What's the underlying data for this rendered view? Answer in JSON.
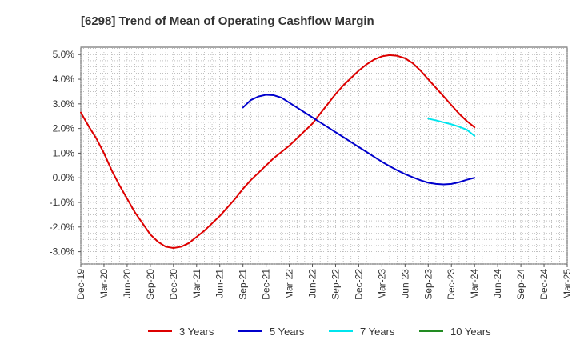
{
  "chart_data": {
    "type": "line",
    "title": "[6298]  Trend of Mean of Operating Cashflow Margin",
    "xlabel": "",
    "ylabel": "",
    "x_ticks": [
      "Dec-19",
      "Mar-20",
      "Jun-20",
      "Sep-20",
      "Dec-20",
      "Mar-21",
      "Jun-21",
      "Sep-21",
      "Dec-21",
      "Mar-22",
      "Jun-22",
      "Sep-22",
      "Dec-22",
      "Mar-23",
      "Jun-23",
      "Sep-23",
      "Dec-23",
      "Mar-24",
      "Jun-24",
      "Sep-24",
      "Dec-24",
      "Mar-25"
    ],
    "y_ticks": [
      "5.0%",
      "4.0%",
      "3.0%",
      "2.0%",
      "1.0%",
      "0.0%",
      "-1.0%",
      "-2.0%",
      "-3.0%"
    ],
    "y_tick_values": [
      5,
      4,
      3,
      2,
      1,
      0,
      -1,
      -2,
      -3
    ],
    "ylim": [
      -3.5,
      5.3
    ],
    "grid": true,
    "legend_position": "bottom",
    "series": [
      {
        "name": "3 Years",
        "color": "#dd0000",
        "points": [
          [
            "Dec-19",
            2.65
          ],
          [
            "Jan-20",
            2.1
          ],
          [
            "Feb-20",
            1.6
          ],
          [
            "Mar-20",
            1.0
          ],
          [
            "Apr-20",
            0.3
          ],
          [
            "May-20",
            -0.3
          ],
          [
            "Jun-20",
            -0.85
          ],
          [
            "Jul-20",
            -1.4
          ],
          [
            "Aug-20",
            -1.85
          ],
          [
            "Sep-20",
            -2.3
          ],
          [
            "Oct-20",
            -2.6
          ],
          [
            "Nov-20",
            -2.8
          ],
          [
            "Dec-20",
            -2.85
          ],
          [
            "Jan-21",
            -2.8
          ],
          [
            "Feb-21",
            -2.65
          ],
          [
            "Mar-21",
            -2.4
          ],
          [
            "Apr-21",
            -2.15
          ],
          [
            "May-21",
            -1.85
          ],
          [
            "Jun-21",
            -1.55
          ],
          [
            "Jul-21",
            -1.2
          ],
          [
            "Aug-21",
            -0.85
          ],
          [
            "Sep-21",
            -0.45
          ],
          [
            "Oct-21",
            -0.1
          ],
          [
            "Nov-21",
            0.2
          ],
          [
            "Dec-21",
            0.5
          ],
          [
            "Jan-22",
            0.8
          ],
          [
            "Feb-22",
            1.05
          ],
          [
            "Mar-22",
            1.3
          ],
          [
            "Apr-22",
            1.6
          ],
          [
            "May-22",
            1.9
          ],
          [
            "Jun-22",
            2.2
          ],
          [
            "Jul-22",
            2.6
          ],
          [
            "Aug-22",
            3.0
          ],
          [
            "Sep-22",
            3.4
          ],
          [
            "Oct-22",
            3.75
          ],
          [
            "Nov-22",
            4.05
          ],
          [
            "Dec-22",
            4.35
          ],
          [
            "Jan-23",
            4.6
          ],
          [
            "Feb-23",
            4.8
          ],
          [
            "Mar-23",
            4.93
          ],
          [
            "Apr-23",
            4.98
          ],
          [
            "May-23",
            4.95
          ],
          [
            "Jun-23",
            4.85
          ],
          [
            "Jul-23",
            4.65
          ],
          [
            "Aug-23",
            4.35
          ],
          [
            "Sep-23",
            4.0
          ],
          [
            "Oct-23",
            3.65
          ],
          [
            "Nov-23",
            3.3
          ],
          [
            "Dec-23",
            2.95
          ],
          [
            "Jan-24",
            2.6
          ],
          [
            "Feb-24",
            2.3
          ],
          [
            "Mar-24",
            2.05
          ]
        ]
      },
      {
        "name": "5 Years",
        "color": "#0000cc",
        "points": [
          [
            "Sep-21",
            2.85
          ],
          [
            "Oct-21",
            3.15
          ],
          [
            "Nov-21",
            3.3
          ],
          [
            "Dec-21",
            3.37
          ],
          [
            "Jan-22",
            3.35
          ],
          [
            "Feb-22",
            3.25
          ],
          [
            "Mar-22",
            3.05
          ],
          [
            "Apr-22",
            2.85
          ],
          [
            "May-22",
            2.65
          ],
          [
            "Jun-22",
            2.45
          ],
          [
            "Jul-22",
            2.25
          ],
          [
            "Aug-22",
            2.05
          ],
          [
            "Sep-22",
            1.85
          ],
          [
            "Oct-22",
            1.65
          ],
          [
            "Nov-22",
            1.45
          ],
          [
            "Dec-22",
            1.25
          ],
          [
            "Jan-23",
            1.05
          ],
          [
            "Feb-23",
            0.85
          ],
          [
            "Mar-23",
            0.65
          ],
          [
            "Apr-23",
            0.47
          ],
          [
            "May-23",
            0.3
          ],
          [
            "Jun-23",
            0.15
          ],
          [
            "Jul-23",
            0.02
          ],
          [
            "Aug-23",
            -0.1
          ],
          [
            "Sep-23",
            -0.2
          ],
          [
            "Oct-23",
            -0.25
          ],
          [
            "Nov-23",
            -0.27
          ],
          [
            "Dec-23",
            -0.25
          ],
          [
            "Jan-24",
            -0.18
          ],
          [
            "Feb-24",
            -0.08
          ],
          [
            "Mar-24",
            0.0
          ]
        ]
      },
      {
        "name": "7 Years",
        "color": "#00e5ee",
        "points": [
          [
            "Sep-23",
            2.4
          ],
          [
            "Oct-23",
            2.33
          ],
          [
            "Nov-23",
            2.25
          ],
          [
            "Dec-23",
            2.17
          ],
          [
            "Jan-24",
            2.07
          ],
          [
            "Feb-24",
            1.95
          ],
          [
            "Mar-24",
            1.7
          ]
        ]
      },
      {
        "name": "10 Years",
        "color": "#228b22",
        "points": []
      }
    ]
  }
}
